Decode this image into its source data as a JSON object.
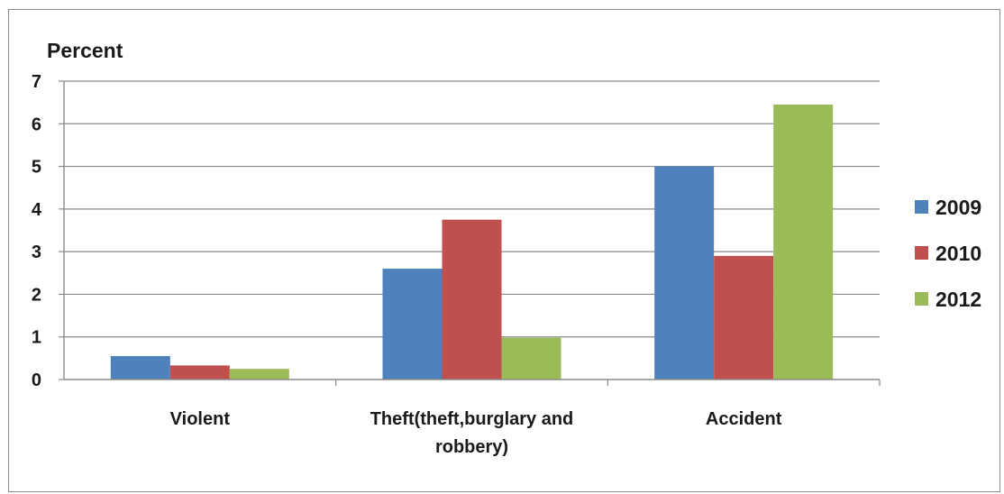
{
  "chart_data": {
    "type": "bar",
    "ylabel": "Percent",
    "categories": [
      [
        "Violent"
      ],
      [
        "Theft(theft,burglary and",
        "robbery)"
      ],
      [
        "Accident"
      ]
    ],
    "series": [
      {
        "name": "2009",
        "values": [
          0.55,
          2.6,
          5.0
        ],
        "color": "#4f81bd"
      },
      {
        "name": "2010",
        "values": [
          0.33,
          3.75,
          2.9
        ],
        "color": "#c0504d"
      },
      {
        "name": "2012",
        "values": [
          0.25,
          0.98,
          6.45
        ],
        "color": "#9bbb59"
      }
    ],
    "ylim": [
      0,
      7
    ],
    "yticks": [
      0,
      1,
      2,
      3,
      4,
      5,
      6,
      7
    ],
    "grid": true,
    "legend_position": "right"
  }
}
